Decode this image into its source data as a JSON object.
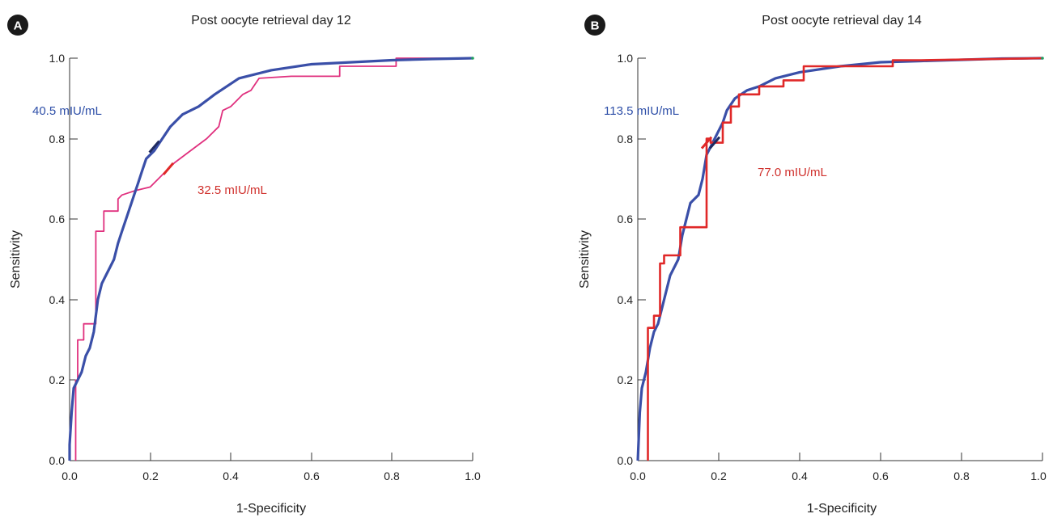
{
  "chart_data": [
    {
      "type": "line",
      "panel_label": "A",
      "title": "Post oocyte retrieval day 12",
      "xlabel": "1-Specificity",
      "ylabel": "Sensitivity",
      "xlim": [
        0,
        1
      ],
      "ylim": [
        0,
        1
      ],
      "x_ticks": [
        "0.0",
        "0.2",
        "0.4",
        "0.6",
        "0.8",
        "1.0"
      ],
      "y_ticks": [
        "0.0",
        "0.2",
        "0.4",
        "0.6",
        "0.8",
        "1.0"
      ],
      "grid": false,
      "series": [
        {
          "color": "#3a4fa8",
          "points": [
            [
              0,
              0
            ],
            [
              0,
              0.04
            ],
            [
              0.005,
              0.12
            ],
            [
              0.01,
              0.18
            ],
            [
              0.02,
              0.2
            ],
            [
              0.03,
              0.22
            ],
            [
              0.04,
              0.26
            ],
            [
              0.05,
              0.28
            ],
            [
              0.06,
              0.32
            ],
            [
              0.065,
              0.36
            ],
            [
              0.07,
              0.4
            ],
            [
              0.08,
              0.44
            ],
            [
              0.09,
              0.46
            ],
            [
              0.1,
              0.48
            ],
            [
              0.11,
              0.5
            ],
            [
              0.12,
              0.54
            ],
            [
              0.13,
              0.57
            ],
            [
              0.14,
              0.6
            ],
            [
              0.15,
              0.63
            ],
            [
              0.16,
              0.66
            ],
            [
              0.17,
              0.69
            ],
            [
              0.18,
              0.72
            ],
            [
              0.19,
              0.75
            ],
            [
              0.21,
              0.77
            ],
            [
              0.23,
              0.8
            ],
            [
              0.25,
              0.83
            ],
            [
              0.28,
              0.86
            ],
            [
              0.32,
              0.88
            ],
            [
              0.36,
              0.91
            ],
            [
              0.42,
              0.95
            ],
            [
              0.5,
              0.97
            ],
            [
              0.6,
              0.985
            ],
            [
              0.7,
              0.99
            ],
            [
              0.8,
              0.995
            ],
            [
              0.9,
              0.998
            ],
            [
              1.0,
              1.0
            ]
          ]
        },
        {
          "color": "#e0307e",
          "points": [
            [
              0.015,
              0
            ],
            [
              0.015,
              0.2
            ],
            [
              0.02,
              0.2
            ],
            [
              0.02,
              0.3
            ],
            [
              0.035,
              0.3
            ],
            [
              0.035,
              0.34
            ],
            [
              0.065,
              0.34
            ],
            [
              0.065,
              0.57
            ],
            [
              0.085,
              0.57
            ],
            [
              0.085,
              0.62
            ],
            [
              0.12,
              0.62
            ],
            [
              0.12,
              0.65
            ],
            [
              0.13,
              0.66
            ],
            [
              0.16,
              0.67
            ],
            [
              0.2,
              0.68
            ],
            [
              0.24,
              0.72
            ],
            [
              0.26,
              0.74
            ],
            [
              0.3,
              0.77
            ],
            [
              0.34,
              0.8
            ],
            [
              0.37,
              0.83
            ],
            [
              0.38,
              0.87
            ],
            [
              0.4,
              0.88
            ],
            [
              0.43,
              0.91
            ],
            [
              0.45,
              0.92
            ],
            [
              0.47,
              0.95
            ],
            [
              0.55,
              0.955
            ],
            [
              0.67,
              0.955
            ],
            [
              0.67,
              0.98
            ],
            [
              0.81,
              0.98
            ],
            [
              0.81,
              1.0
            ],
            [
              1.0,
              1.0
            ]
          ]
        }
      ],
      "annotations": [
        {
          "text": "40.5 mIU/mL",
          "color": "#2e4fa8",
          "at": [
            0.21,
            0.78
          ]
        },
        {
          "text": "32.5 mIU/mL",
          "color": "#d0312d",
          "at": [
            0.245,
            0.725
          ]
        }
      ],
      "end_marker_color": "#20a060"
    },
    {
      "type": "line",
      "panel_label": "B",
      "title": "Post oocyte retrieval day 14",
      "xlabel": "1-Specificity",
      "ylabel": "Sensitivity",
      "xlim": [
        0,
        1
      ],
      "ylim": [
        0,
        1
      ],
      "x_ticks": [
        "0.0",
        "0.2",
        "0.4",
        "0.6",
        "0.8",
        "1.0"
      ],
      "y_ticks": [
        "0.0",
        "0.2",
        "0.4",
        "0.6",
        "0.8",
        "1.0"
      ],
      "grid": false,
      "series": [
        {
          "color": "#3a4fa8",
          "points": [
            [
              0,
              0
            ],
            [
              0.005,
              0.12
            ],
            [
              0.01,
              0.18
            ],
            [
              0.02,
              0.22
            ],
            [
              0.03,
              0.28
            ],
            [
              0.04,
              0.32
            ],
            [
              0.05,
              0.34
            ],
            [
              0.06,
              0.38
            ],
            [
              0.07,
              0.42
            ],
            [
              0.08,
              0.46
            ],
            [
              0.1,
              0.5
            ],
            [
              0.11,
              0.56
            ],
            [
              0.12,
              0.6
            ],
            [
              0.13,
              0.64
            ],
            [
              0.15,
              0.66
            ],
            [
              0.16,
              0.7
            ],
            [
              0.17,
              0.76
            ],
            [
              0.18,
              0.78
            ],
            [
              0.19,
              0.8
            ],
            [
              0.21,
              0.84
            ],
            [
              0.22,
              0.87
            ],
            [
              0.24,
              0.9
            ],
            [
              0.27,
              0.92
            ],
            [
              0.3,
              0.93
            ],
            [
              0.34,
              0.95
            ],
            [
              0.4,
              0.965
            ],
            [
              0.5,
              0.98
            ],
            [
              0.6,
              0.99
            ],
            [
              0.7,
              0.993
            ],
            [
              0.8,
              0.996
            ],
            [
              0.9,
              0.999
            ],
            [
              1.0,
              1.0
            ]
          ]
        },
        {
          "color": "#e02828",
          "points": [
            [
              0.025,
              0
            ],
            [
              0.025,
              0.33
            ],
            [
              0.04,
              0.33
            ],
            [
              0.04,
              0.36
            ],
            [
              0.055,
              0.36
            ],
            [
              0.055,
              0.49
            ],
            [
              0.065,
              0.49
            ],
            [
              0.065,
              0.51
            ],
            [
              0.105,
              0.51
            ],
            [
              0.105,
              0.58
            ],
            [
              0.17,
              0.58
            ],
            [
              0.17,
              0.8
            ],
            [
              0.18,
              0.8
            ],
            [
              0.18,
              0.79
            ],
            [
              0.21,
              0.79
            ],
            [
              0.21,
              0.84
            ],
            [
              0.23,
              0.84
            ],
            [
              0.23,
              0.88
            ],
            [
              0.25,
              0.88
            ],
            [
              0.25,
              0.91
            ],
            [
              0.3,
              0.91
            ],
            [
              0.3,
              0.93
            ],
            [
              0.36,
              0.93
            ],
            [
              0.36,
              0.945
            ],
            [
              0.41,
              0.945
            ],
            [
              0.41,
              0.98
            ],
            [
              0.63,
              0.98
            ],
            [
              0.63,
              0.995
            ],
            [
              0.7,
              0.995
            ],
            [
              1.0,
              1.0
            ]
          ]
        }
      ],
      "annotations": [
        {
          "text": "113.5 mIU/mL",
          "color": "#2e4fa8",
          "at": [
            0.19,
            0.79
          ]
        },
        {
          "text": "77.0 mIU/mL",
          "color": "#d0312d",
          "at": [
            0.17,
            0.79
          ]
        }
      ],
      "end_marker_color": "#20a060"
    }
  ]
}
